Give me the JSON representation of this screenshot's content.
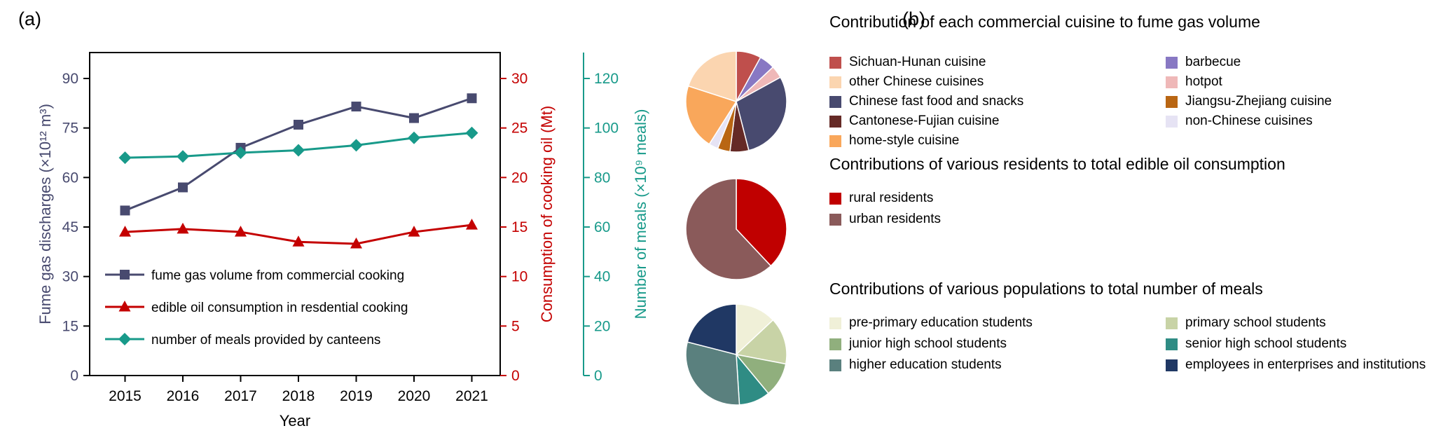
{
  "panels": {
    "a_label": "(a)",
    "b_label": "(b)"
  },
  "chart_data": [
    {
      "id": "timeseries-cooking",
      "type": "line",
      "x": [
        2015,
        2016,
        2017,
        2018,
        2019,
        2020,
        2021
      ],
      "xlabel": "Year",
      "grid": false,
      "legend_position": "inside bottom-left",
      "axes": [
        {
          "id": "left",
          "label": "Fume gas discharges (×10¹² m³)",
          "range": [
            0,
            90
          ],
          "ticks": [
            0,
            15,
            30,
            45,
            60,
            75,
            90
          ],
          "color": "#484a6f"
        },
        {
          "id": "right1",
          "label": "Consumption of cooking oil (Mt)",
          "range": [
            0,
            30
          ],
          "ticks": [
            0,
            5,
            10,
            15,
            20,
            25,
            30
          ],
          "color": "#c40000"
        },
        {
          "id": "right2",
          "label": "Number of meals (×10⁹ meals)",
          "range": [
            0,
            120
          ],
          "ticks": [
            0,
            20,
            40,
            60,
            80,
            100,
            120
          ],
          "color": "#189a8a"
        }
      ],
      "series": [
        {
          "name": "fume gas volume from commercial cooking",
          "axis": "left",
          "marker": "square",
          "color": "#484a6f",
          "values": [
            50,
            57,
            69,
            76,
            81.5,
            78,
            84
          ]
        },
        {
          "name": "edible oil consumption in resdential cooking",
          "axis": "right1",
          "marker": "triangle",
          "color": "#c40000",
          "values": [
            14.5,
            14.8,
            14.5,
            13.5,
            13.3,
            14.5,
            15.2
          ]
        },
        {
          "name": "number of meals provided by canteens",
          "axis": "right2",
          "marker": "diamond",
          "color": "#189a8a",
          "values": [
            88,
            88.5,
            90,
            91,
            93,
            96,
            98
          ]
        }
      ]
    },
    {
      "id": "pie-cuisine",
      "type": "pie",
      "title": "Contribution of each commercial cuisine to fume gas volume",
      "slices": [
        {
          "label": "Sichuan-Hunan cuisine",
          "value": 8,
          "color": "#bf4f4c"
        },
        {
          "label": "barbecue",
          "value": 5,
          "color": "#8878c3"
        },
        {
          "label": "hotpot",
          "value": 4,
          "color": "#efb8b8"
        },
        {
          "label": "Chinese fast food and snacks",
          "value": 29,
          "color": "#484a6f"
        },
        {
          "label": "Cantonese-Fujian cuisine",
          "value": 6,
          "color": "#652a26"
        },
        {
          "label": "Jiangsu-Zhejiang cuisine",
          "value": 4,
          "color": "#b96613"
        },
        {
          "label": "non-Chinese cuisines",
          "value": 3,
          "color": "#e6e3f4"
        },
        {
          "label": "home-style cuisine",
          "value": 21,
          "color": "#f9a75b"
        },
        {
          "label": "other Chinese cuisines",
          "value": 20,
          "color": "#fbd5b0"
        }
      ],
      "legend": [
        "Sichuan-Hunan cuisine",
        "barbecue",
        "other Chinese cuisines",
        "hotpot",
        "Chinese fast food and snacks",
        "Jiangsu-Zhejiang cuisine",
        "Cantonese-Fujian cuisine",
        "non-Chinese cuisines",
        "home-style cuisine"
      ]
    },
    {
      "id": "pie-residents",
      "type": "pie",
      "title": "Contributions of various residents to total edible oil consumption",
      "slices": [
        {
          "label": "rural residents",
          "value": 38,
          "color": "#c00000"
        },
        {
          "label": "urban residents",
          "value": 62,
          "color": "#8a5a5a"
        }
      ]
    },
    {
      "id": "pie-populations",
      "type": "pie",
      "title": "Contributions of various populations to total number of meals",
      "slices": [
        {
          "label": "pre-primary education students",
          "value": 13,
          "color": "#f0f0d8"
        },
        {
          "label": "primary school students",
          "value": 15,
          "color": "#c8d3a6"
        },
        {
          "label": "junior high school students",
          "value": 11,
          "color": "#90af7d"
        },
        {
          "label": "senior high school students",
          "value": 10,
          "color": "#2f8c84"
        },
        {
          "label": "higher education students",
          "value": 30,
          "color": "#5a807e"
        },
        {
          "label": "employees in enterprises and institutions",
          "value": 21,
          "color": "#203864"
        }
      ]
    }
  ]
}
